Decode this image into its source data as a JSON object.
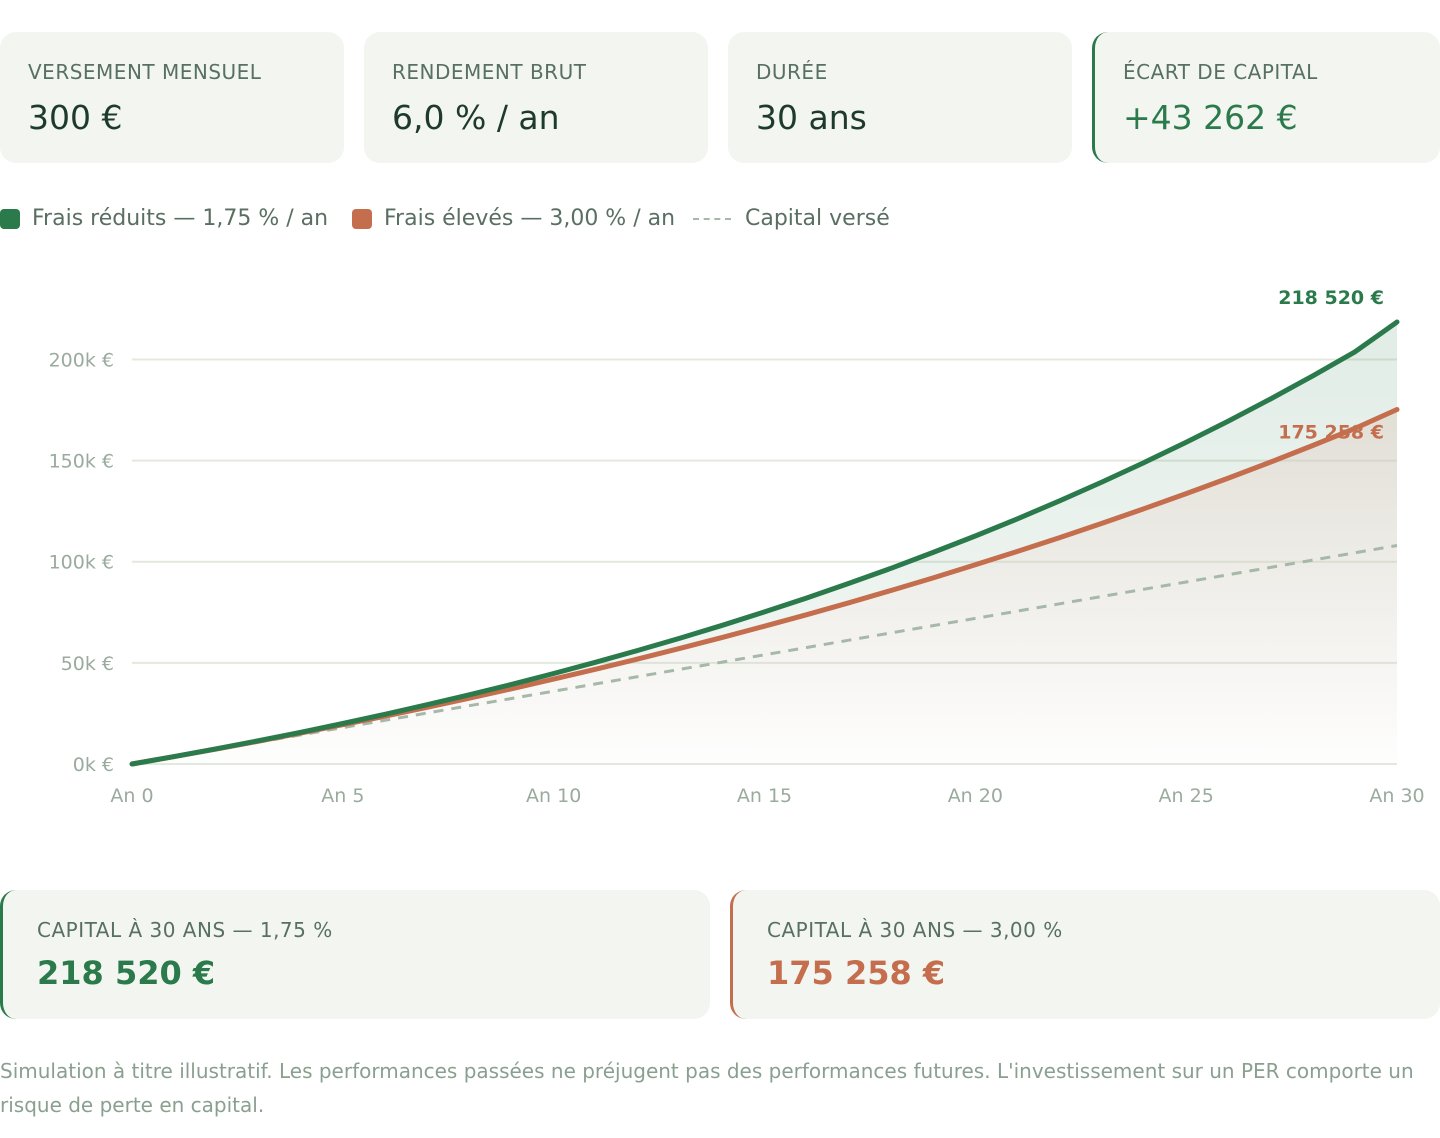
{
  "kpis": [
    {
      "label": "VERSEMENT MENSUEL",
      "value": "300 €"
    },
    {
      "label": "RENDEMENT BRUT",
      "value": "6,0 % / an"
    },
    {
      "label": "DURÉE",
      "value": "30 ans"
    },
    {
      "label": "ÉCART DE CAPITAL",
      "value": "+43 262 €"
    }
  ],
  "legend": {
    "low_fees": "Frais réduits — 1,75 % / an",
    "high_fees": "Frais élevés — 3,00 % / an",
    "capital": "Capital versé"
  },
  "colors": {
    "low_fees": "#2b7a4b",
    "high_fees": "#c46e4e",
    "capital": "#a6b8a8"
  },
  "chart_data": {
    "type": "line",
    "x": [
      0,
      1,
      2,
      3,
      4,
      5,
      6,
      7,
      8,
      9,
      10,
      11,
      12,
      13,
      14,
      15,
      16,
      17,
      18,
      19,
      20,
      21,
      22,
      23,
      24,
      25,
      26,
      27,
      28,
      29,
      30
    ],
    "x_tick_values": [
      0,
      5,
      10,
      15,
      20,
      25,
      30
    ],
    "x_tick_labels": [
      "An 0",
      "An 5",
      "An 10",
      "An 15",
      "An 20",
      "An 25",
      "An 30"
    ],
    "y_tick_values": [
      0,
      50000,
      100000,
      150000,
      200000
    ],
    "y_tick_labels": [
      "0k €",
      "50k €",
      "100k €",
      "150k €",
      "200k €"
    ],
    "ylim": [
      0,
      218520
    ],
    "grid": true,
    "series": [
      {
        "name": "Frais réduits — 1,75 % / an",
        "key": "low",
        "end_label": "218 520 €",
        "values": [
          0,
          3680,
          7520,
          11520,
          15690,
          20040,
          24570,
          29300,
          34230,
          39370,
          44730,
          50320,
          56150,
          62230,
          68570,
          75180,
          82080,
          89270,
          96770,
          104590,
          112740,
          121240,
          130110,
          139350,
          148990,
          159050,
          169530,
          180460,
          191860,
          203760,
          218520
        ]
      },
      {
        "name": "Frais élevés — 3,00 % / an",
        "key": "high",
        "end_label": "175 258 €",
        "values": [
          0,
          3650,
          7410,
          11290,
          15290,
          19410,
          23650,
          28030,
          32530,
          37170,
          41950,
          46880,
          51950,
          57180,
          62570,
          68120,
          73830,
          79720,
          85780,
          92030,
          98460,
          105090,
          111920,
          118960,
          126210,
          133670,
          141360,
          149280,
          157450,
          165850,
          175258
        ]
      },
      {
        "name": "Capital versé",
        "key": "capital",
        "values": [
          0,
          3600,
          7200,
          10800,
          14400,
          18000,
          21600,
          25200,
          28800,
          32400,
          36000,
          39600,
          43200,
          46800,
          50400,
          54000,
          57600,
          61200,
          64800,
          68400,
          72000,
          75600,
          79200,
          82800,
          86400,
          90000,
          93600,
          97200,
          100800,
          104400,
          108000
        ]
      }
    ]
  },
  "results": [
    {
      "label": "CAPITAL À 30 ANS — 1,75 %",
      "value": "218 520 €"
    },
    {
      "label": "CAPITAL À 30 ANS — 3,00 %",
      "value": "175 258 €"
    }
  ],
  "disclaimer": "Simulation à titre illustratif. Les performances passées ne préjugent pas des performances futures. L'investissement sur un PER comporte un risque de perte en capital."
}
